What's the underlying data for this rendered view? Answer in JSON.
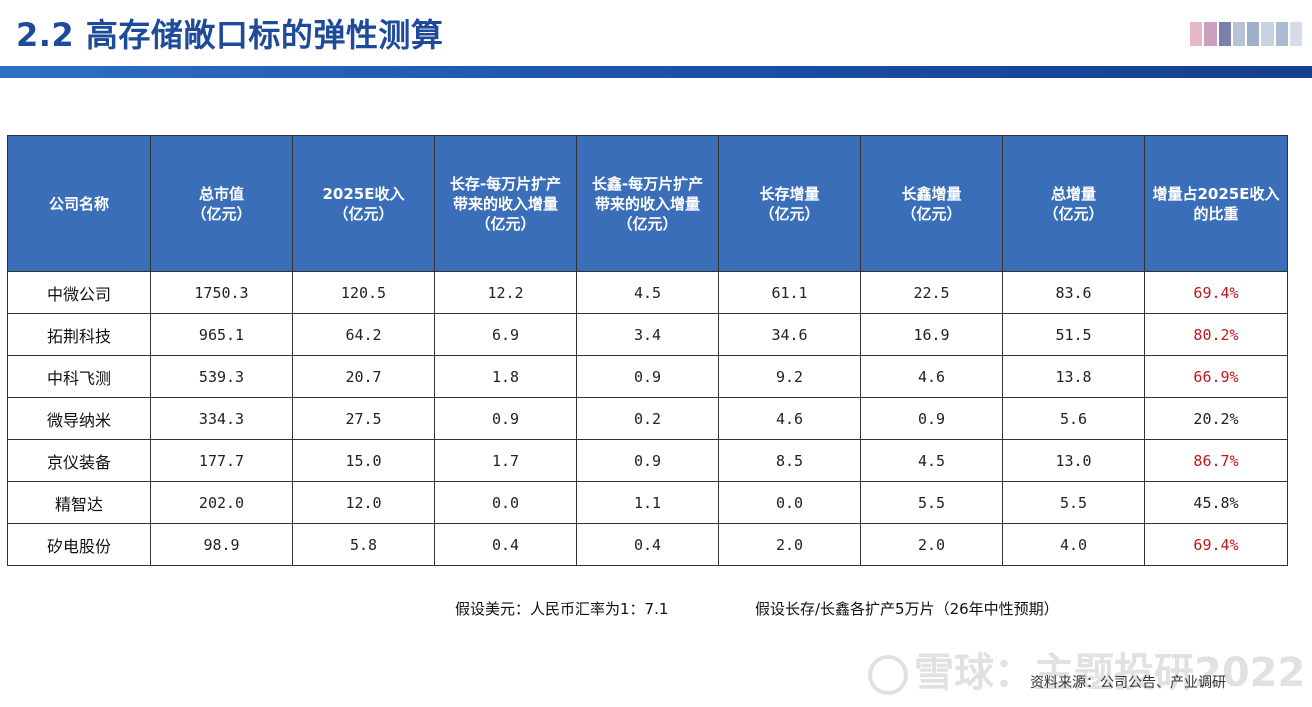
{
  "title": "2.2 高存储敞口标的弹性测算",
  "table": {
    "headers": [
      "公司名称",
      "总市值\n（亿元）",
      "2025E收入\n（亿元）",
      "长存-每万片扩产\n带来的收入增量\n（亿元）",
      "长鑫-每万片扩产\n带来的收入增量\n（亿元）",
      "长存增量\n（亿元）",
      "长鑫增量\n（亿元）",
      "总增量\n（亿元）",
      "增量占2025E收入\n的比重"
    ],
    "rows": [
      [
        "中微公司",
        "1750.3",
        "120.5",
        "12.2",
        "4.5",
        "61.1",
        "22.5",
        "83.6",
        "69.4%"
      ],
      [
        "拓荆科技",
        "965.1",
        "64.2",
        "6.9",
        "3.4",
        "34.6",
        "16.9",
        "51.5",
        "80.2%"
      ],
      [
        "中科飞测",
        "539.3",
        "20.7",
        "1.8",
        "0.9",
        "9.2",
        "4.6",
        "13.8",
        "66.9%"
      ],
      [
        "微导纳米",
        "334.3",
        "27.5",
        "0.9",
        "0.2",
        "4.6",
        "0.9",
        "5.6",
        "20.2%"
      ],
      [
        "京仪装备",
        "177.7",
        "15.0",
        "1.7",
        "0.9",
        "8.5",
        "4.5",
        "13.0",
        "86.7%"
      ],
      [
        "精智达",
        "202.0",
        "12.0",
        "0.0",
        "1.1",
        "0.0",
        "5.5",
        "5.5",
        "45.8%"
      ],
      [
        "矽电股份",
        "98.9",
        "5.8",
        "0.4",
        "0.4",
        "2.0",
        "2.0",
        "4.0",
        "69.4%"
      ]
    ],
    "highlight_color": "#c0181b",
    "header_color": "#3a6eb8"
  },
  "notes": {
    "exchange_rate": "假设美元：人民币汇率为1：7.1",
    "expansion": "假设长存/长鑫各扩产5万片（26年中性预期）"
  },
  "watermark": "雪球：主题投研2022",
  "source": "资料来源：公司公告、产业调研"
}
